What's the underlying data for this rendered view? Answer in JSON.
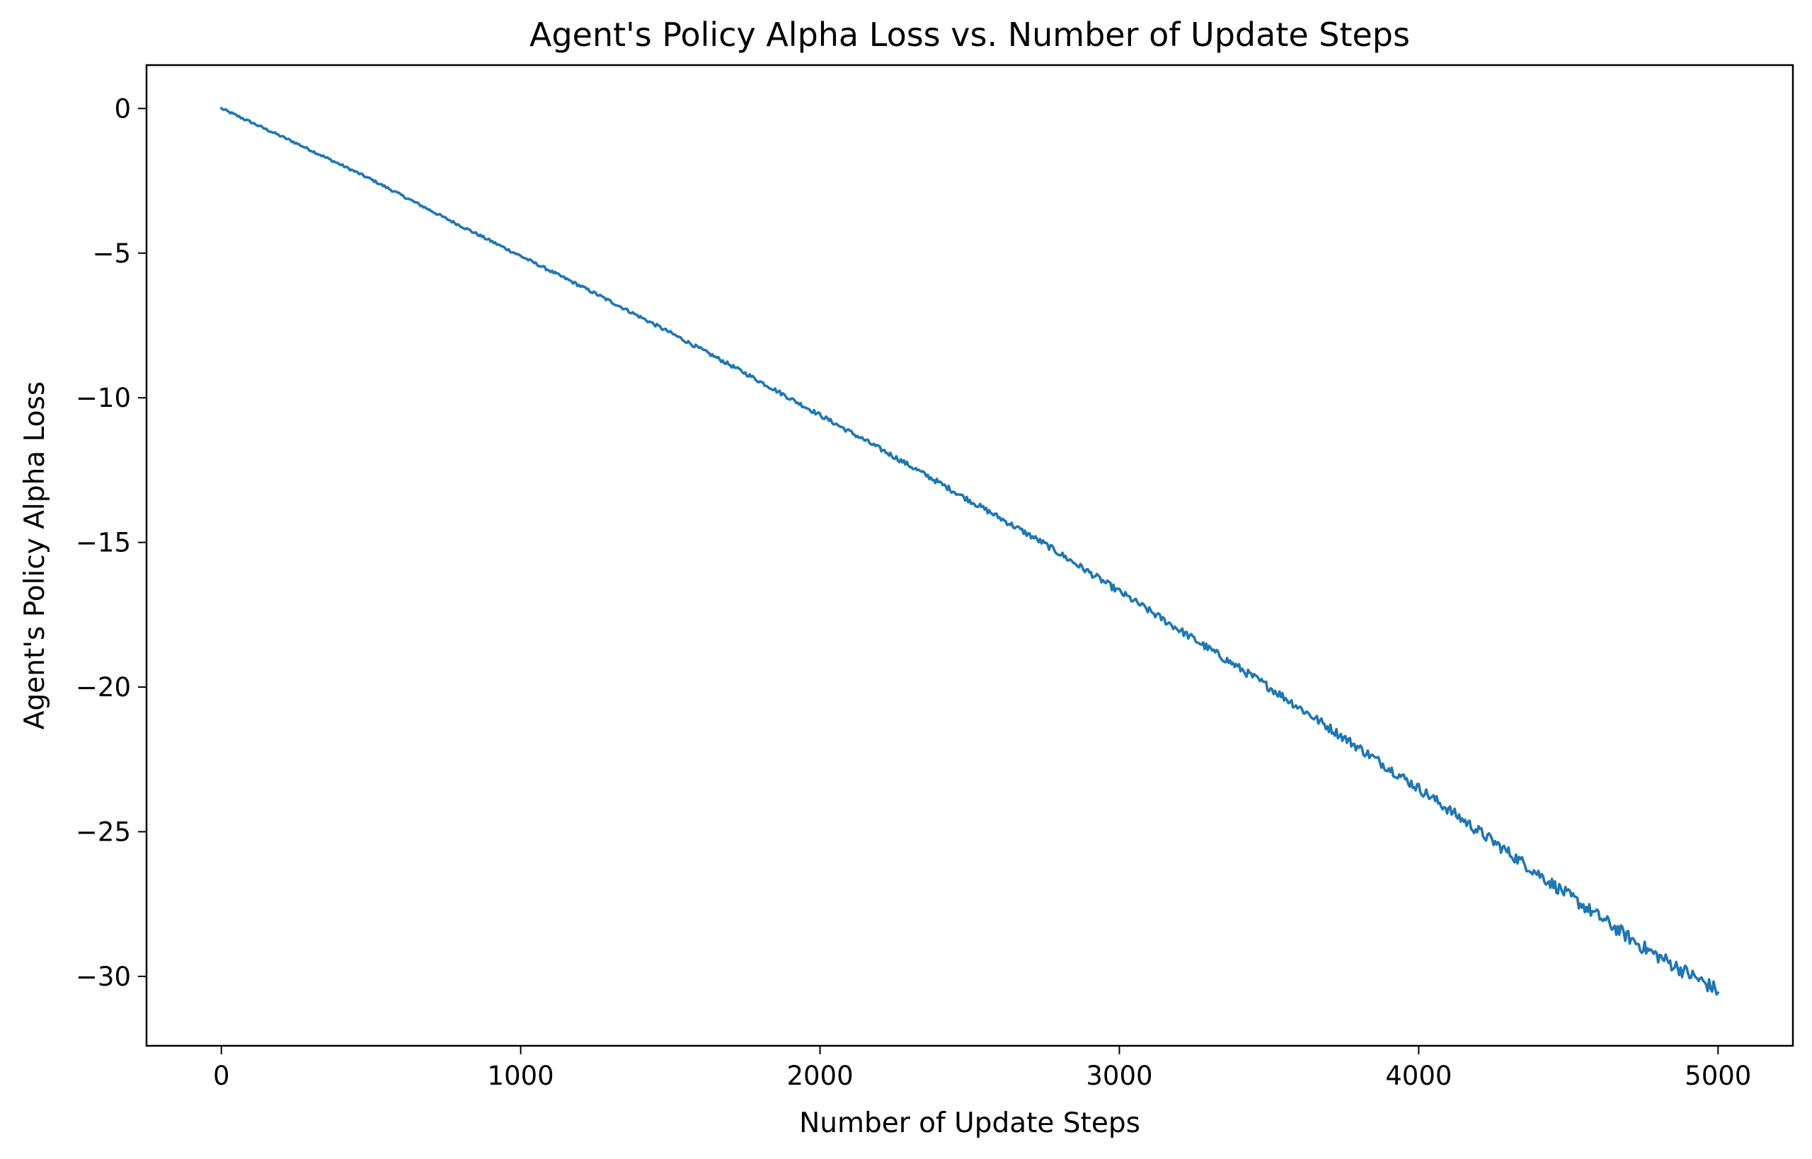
{
  "chart_data": {
    "type": "line",
    "title": "Agent's Policy Alpha Loss vs. Number of Update Steps",
    "xlabel": "Number of Update Steps",
    "ylabel": "Agent's Policy Alpha Loss",
    "xlim": [
      -250,
      5250
    ],
    "ylim": [
      -32.4,
      1.5
    ],
    "xticks": [
      0,
      1000,
      2000,
      3000,
      4000,
      5000
    ],
    "xtick_labels": [
      "0",
      "1000",
      "2000",
      "3000",
      "4000",
      "5000"
    ],
    "yticks": [
      0,
      -5,
      -10,
      -15,
      -20,
      -25,
      -30
    ],
    "ytick_labels": [
      "0",
      "−5",
      "−10",
      "−15",
      "−20",
      "−25",
      "−30"
    ],
    "grid": false,
    "legend": false,
    "series": [
      {
        "color": "#1f77b4",
        "x": [
          0,
          250,
          500,
          750,
          1000,
          1250,
          1500,
          1750,
          2000,
          2250,
          2500,
          2750,
          3000,
          3250,
          3500,
          3750,
          4000,
          4250,
          4500,
          4750,
          5000
        ],
        "y": [
          0.0,
          -1.2,
          -2.45,
          -3.8,
          -5.1,
          -6.4,
          -7.75,
          -9.15,
          -10.6,
          -12.05,
          -13.55,
          -15.05,
          -16.7,
          -18.35,
          -20.0,
          -21.75,
          -23.5,
          -25.35,
          -27.2,
          -29.0,
          -30.5
        ]
      }
    ]
  }
}
